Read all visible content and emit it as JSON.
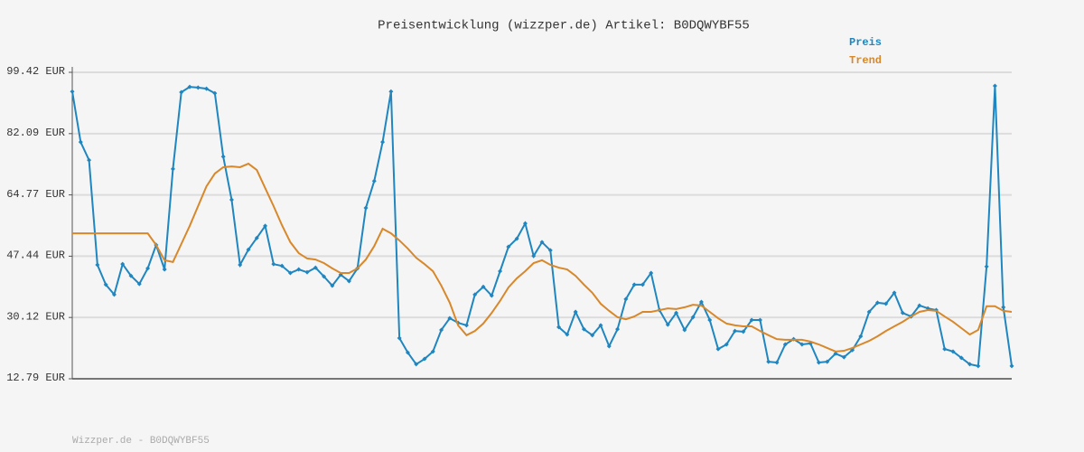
{
  "chart_data": {
    "type": "line",
    "title": "Preisentwicklung (wizzper.de) Artikel: B0DQWYBF55",
    "footer": "Wizzper.de - B0DQWYBF55",
    "legend": "top-right",
    "grid": true,
    "ylim": [
      12.79,
      99.42
    ],
    "yticks": [
      {
        "value": 12.79,
        "label": "12.79 EUR"
      },
      {
        "value": 30.12,
        "label": "30.12 EUR"
      },
      {
        "value": 47.44,
        "label": "47.44 EUR"
      },
      {
        "value": 64.77,
        "label": "64.77 EUR"
      },
      {
        "value": 82.09,
        "label": "82.09 EUR"
      },
      {
        "value": 99.42,
        "label": "99.42 EUR"
      }
    ],
    "categories": [
      null,
      null,
      null,
      null,
      null,
      null,
      null,
      null,
      null,
      null,
      null,
      null,
      null,
      null,
      null,
      null,
      null,
      null,
      null,
      null,
      null,
      null,
      null,
      null,
      null,
      null,
      null,
      null,
      null,
      null,
      null,
      null,
      null,
      null,
      null,
      null,
      null,
      null,
      null,
      null,
      null,
      null,
      null,
      null,
      null,
      null,
      null,
      null,
      null,
      null,
      null,
      null,
      null,
      null,
      null,
      null,
      null,
      null,
      null,
      null,
      null,
      null,
      null,
      null,
      null,
      null,
      null,
      null,
      null,
      null,
      null,
      null,
      null,
      null,
      null,
      null,
      null,
      null,
      null,
      null,
      null,
      null,
      null,
      null,
      null,
      null,
      null,
      null,
      null,
      null,
      null,
      null,
      null,
      null,
      null,
      null,
      null,
      null,
      null,
      null,
      null,
      null,
      null,
      null,
      null,
      null,
      null,
      null,
      null,
      null,
      null,
      null,
      null
    ],
    "series": [
      {
        "name": "Preis",
        "color": "#1f86c0",
        "markers": true,
        "values": [
          94.0,
          79.7,
          74.6,
          45.0,
          39.4,
          36.6,
          45.2,
          41.9,
          39.6,
          44.0,
          50.6,
          43.7,
          72.1,
          93.8,
          95.3,
          95.1,
          94.8,
          93.5,
          75.6,
          63.4,
          45.0,
          49.3,
          52.6,
          56.0,
          45.2,
          44.7,
          42.7,
          43.7,
          42.9,
          44.2,
          41.7,
          39.1,
          42.2,
          40.4,
          44.0,
          61.1,
          68.7,
          79.7,
          94.0,
          24.3,
          20.2,
          16.9,
          18.4,
          20.5,
          26.6,
          29.9,
          28.6,
          27.9,
          36.6,
          38.8,
          36.3,
          43.2,
          50.1,
          52.4,
          56.7,
          47.5,
          51.4,
          49.1,
          27.4,
          25.3,
          31.7,
          26.8,
          25.1,
          27.9,
          22.0,
          26.8,
          35.3,
          39.4,
          39.4,
          42.7,
          32.2,
          28.1,
          31.4,
          26.6,
          30.2,
          34.5,
          29.4,
          21.2,
          22.5,
          26.3,
          26.1,
          29.4,
          29.4,
          17.6,
          17.4,
          22.5,
          24.0,
          22.5,
          22.8,
          17.4,
          17.6,
          19.9,
          18.9,
          20.9,
          24.8,
          31.7,
          34.3,
          34.0,
          37.1,
          31.4,
          30.4,
          33.5,
          32.7,
          32.2,
          21.2,
          20.5,
          18.7,
          16.9,
          16.4,
          44.5,
          95.6,
          33.0,
          16.4
        ]
      },
      {
        "name": "Trend",
        "color": "#d8882a",
        "markers": false,
        "values": [
          53.9,
          53.9,
          53.9,
          53.9,
          53.9,
          53.9,
          53.9,
          53.9,
          53.9,
          53.9,
          50.6,
          46.3,
          45.8,
          50.9,
          56.0,
          61.6,
          67.2,
          70.8,
          72.6,
          72.8,
          72.6,
          73.6,
          71.8,
          66.7,
          61.6,
          56.2,
          51.4,
          48.3,
          46.8,
          46.5,
          45.5,
          44.0,
          42.7,
          42.7,
          44.0,
          46.5,
          50.3,
          55.2,
          53.9,
          51.9,
          49.6,
          47.0,
          45.2,
          43.2,
          39.1,
          34.3,
          27.9,
          25.1,
          26.3,
          28.4,
          31.4,
          34.8,
          38.6,
          41.2,
          43.2,
          45.5,
          46.3,
          45.0,
          44.2,
          43.7,
          41.9,
          39.4,
          37.1,
          34.0,
          32.0,
          30.2,
          29.6,
          30.4,
          31.7,
          31.7,
          32.2,
          32.7,
          32.5,
          33.0,
          33.7,
          33.5,
          31.7,
          29.9,
          28.4,
          27.9,
          27.6,
          27.6,
          26.3,
          25.1,
          24.0,
          23.8,
          23.8,
          23.8,
          23.3,
          22.5,
          21.5,
          20.5,
          20.7,
          21.5,
          22.5,
          23.5,
          24.8,
          26.3,
          27.6,
          28.9,
          30.4,
          31.7,
          32.2,
          32.0,
          30.4,
          28.9,
          27.1,
          25.3,
          26.6,
          33.3,
          33.3,
          32.0,
          31.7
        ]
      }
    ]
  }
}
